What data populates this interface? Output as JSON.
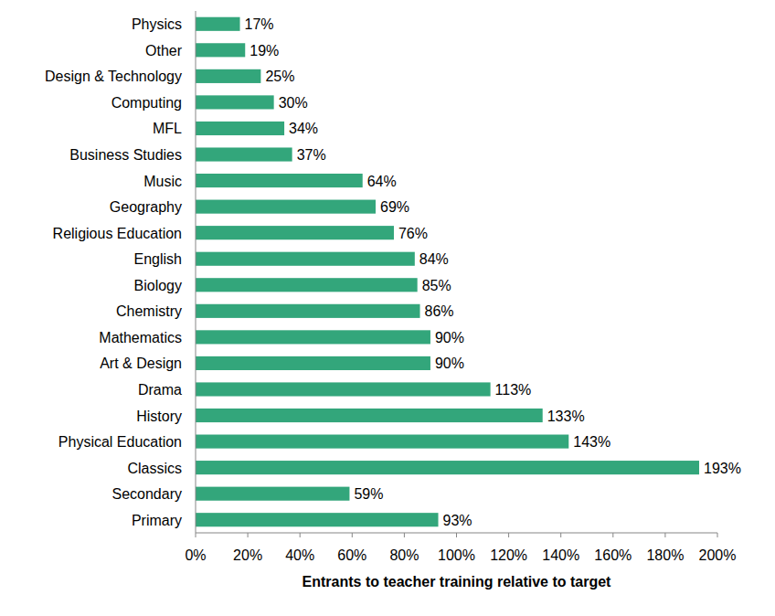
{
  "chart_data": {
    "type": "bar",
    "orientation": "horizontal",
    "xlabel": "Entrants to teacher training relative to target",
    "categories": [
      "Physics",
      "Other",
      "Design & Technology",
      "Computing",
      "MFL",
      "Business Studies",
      "Music",
      "Geography",
      "Religious Education",
      "English",
      "Biology",
      "Chemistry",
      "Mathematics",
      "Art & Design",
      "Drama",
      "History",
      "Physical Education",
      "Classics",
      "Secondary",
      "Primary"
    ],
    "values": [
      17,
      19,
      25,
      30,
      34,
      37,
      64,
      69,
      76,
      84,
      85,
      86,
      90,
      90,
      113,
      133,
      143,
      193,
      59,
      93
    ],
    "value_labels": [
      "17%",
      "19%",
      "25%",
      "30%",
      "34%",
      "37%",
      "64%",
      "69%",
      "76%",
      "84%",
      "85%",
      "86%",
      "90%",
      "90%",
      "113%",
      "133%",
      "143%",
      "193%",
      "59%",
      "93%"
    ],
    "data_labels": true,
    "color": "#33a67b",
    "xlim": [
      0,
      200
    ],
    "xticks": [
      {
        "value": 0,
        "label": "0%"
      },
      {
        "value": 20,
        "label": "20%"
      },
      {
        "value": 40,
        "label": "40%"
      },
      {
        "value": 60,
        "label": "60%"
      },
      {
        "value": 80,
        "label": "80%"
      },
      {
        "value": 100,
        "label": "100%"
      },
      {
        "value": 120,
        "label": "120%"
      },
      {
        "value": 140,
        "label": "140%"
      },
      {
        "value": 160,
        "label": "160%"
      },
      {
        "value": 180,
        "label": "180%"
      },
      {
        "value": 200,
        "label": "200%"
      }
    ],
    "grid": false
  }
}
